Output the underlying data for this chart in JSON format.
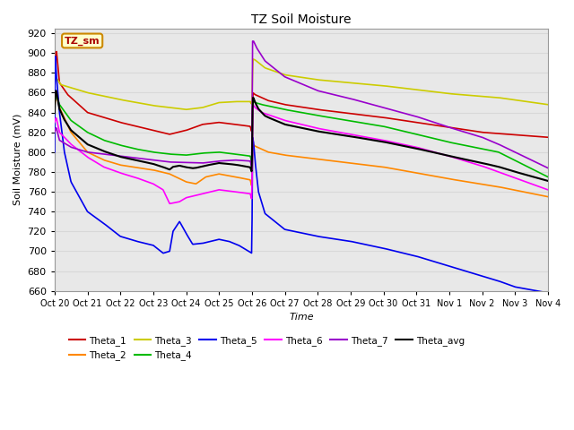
{
  "title": "TZ Soil Moisture",
  "xlabel": "Time",
  "ylabel": "Soil Moisture (mV)",
  "ylim": [
    660,
    925
  ],
  "yticks": [
    660,
    680,
    700,
    720,
    740,
    760,
    780,
    800,
    820,
    840,
    860,
    880,
    900,
    920
  ],
  "fig_facecolor": "#ffffff",
  "plot_bg_color": "#e8e8e8",
  "grid_color": "#d8d8d8",
  "colors": {
    "Theta_1": "#cc0000",
    "Theta_2": "#ff8800",
    "Theta_3": "#cccc00",
    "Theta_4": "#00bb00",
    "Theta_5": "#0000ee",
    "Theta_6": "#ff00ff",
    "Theta_7": "#9900cc",
    "Theta_avg": "#000000"
  },
  "xtick_labels": [
    "Oct 20",
    "Oct 21",
    "Oct 22",
    "Oct 23",
    "Oct 24",
    "Oct 25",
    "Oct 26",
    "Oct 27",
    "Oct 28",
    "Oct 29",
    "Oct 30",
    "Oct 31",
    "Nov 1",
    "Nov 2",
    "Nov 3",
    "Nov 4"
  ],
  "label_box_color": "#ffffcc",
  "label_box_edge": "#cc8800",
  "label_text": "TZ_sm",
  "label_text_color": "#aa0000"
}
